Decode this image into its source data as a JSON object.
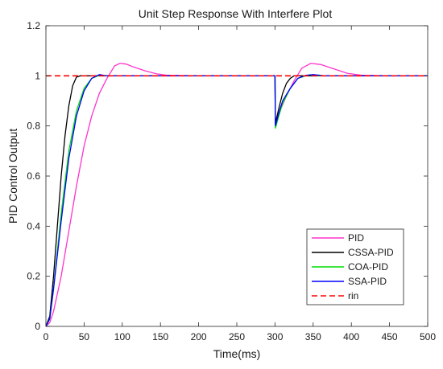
{
  "chart_data": {
    "type": "line",
    "title": "Unit Step Response With Interfere Plot",
    "xlabel": "Time(ms)",
    "ylabel": "PID Control Output",
    "xlim": [
      0,
      500
    ],
    "ylim": [
      0,
      1.2
    ],
    "xticks": [
      0,
      50,
      100,
      150,
      200,
      250,
      300,
      350,
      400,
      450,
      500
    ],
    "yticks": [
      0,
      0.2,
      0.4,
      0.6,
      0.8,
      1,
      1.2
    ],
    "grid": false,
    "legend_position": "bottom-right",
    "series": [
      {
        "name": "PID",
        "color": "#ff33cc",
        "style": "solid",
        "points": [
          [
            0,
            0
          ],
          [
            5,
            0.015
          ],
          [
            10,
            0.06
          ],
          [
            20,
            0.2
          ],
          [
            30,
            0.38
          ],
          [
            40,
            0.56
          ],
          [
            50,
            0.72
          ],
          [
            60,
            0.84
          ],
          [
            70,
            0.93
          ],
          [
            80,
            0.99
          ],
          [
            90,
            1.04
          ],
          [
            97,
            1.05
          ],
          [
            105,
            1.047
          ],
          [
            115,
            1.035
          ],
          [
            130,
            1.02
          ],
          [
            145,
            1.008
          ],
          [
            160,
            1.002
          ],
          [
            200,
            1.0
          ],
          [
            300,
            1.0
          ],
          [
            300.5,
            0.82
          ],
          [
            305,
            0.85
          ],
          [
            315,
            0.92
          ],
          [
            325,
            0.98
          ],
          [
            335,
            1.03
          ],
          [
            347,
            1.05
          ],
          [
            360,
            1.045
          ],
          [
            375,
            1.03
          ],
          [
            395,
            1.01
          ],
          [
            415,
            1.002
          ],
          [
            450,
            1.0
          ],
          [
            500,
            1.0
          ]
        ]
      },
      {
        "name": "CSSA-PID",
        "color": "#000000",
        "style": "solid",
        "points": [
          [
            0,
            0
          ],
          [
            5,
            0.04
          ],
          [
            10,
            0.2
          ],
          [
            15,
            0.4
          ],
          [
            20,
            0.6
          ],
          [
            25,
            0.76
          ],
          [
            30,
            0.88
          ],
          [
            35,
            0.96
          ],
          [
            40,
            0.995
          ],
          [
            45,
            1.0
          ],
          [
            300,
            1.0
          ],
          [
            300.5,
            0.81
          ],
          [
            305,
            0.87
          ],
          [
            310,
            0.93
          ],
          [
            315,
            0.97
          ],
          [
            320,
            0.99
          ],
          [
            325,
            1.0
          ],
          [
            500,
            1.0
          ]
        ]
      },
      {
        "name": "COA-PID",
        "color": "#00dd00",
        "style": "solid",
        "points": [
          [
            0,
            0
          ],
          [
            5,
            0.03
          ],
          [
            10,
            0.15
          ],
          [
            20,
            0.45
          ],
          [
            30,
            0.7
          ],
          [
            40,
            0.86
          ],
          [
            50,
            0.95
          ],
          [
            60,
            0.99
          ],
          [
            70,
            1.002
          ],
          [
            80,
            1.0
          ],
          [
            300,
            1.0
          ],
          [
            300.5,
            0.79
          ],
          [
            305,
            0.84
          ],
          [
            310,
            0.89
          ],
          [
            320,
            0.95
          ],
          [
            330,
            0.99
          ],
          [
            340,
            1.0
          ],
          [
            345,
            1.003
          ],
          [
            360,
            1.0
          ],
          [
            500,
            1.0
          ]
        ]
      },
      {
        "name": "SSA-PID",
        "color": "#0000ff",
        "style": "solid",
        "points": [
          [
            0,
            0
          ],
          [
            5,
            0.03
          ],
          [
            10,
            0.15
          ],
          [
            20,
            0.42
          ],
          [
            30,
            0.67
          ],
          [
            40,
            0.84
          ],
          [
            50,
            0.94
          ],
          [
            60,
            0.99
          ],
          [
            70,
            1.005
          ],
          [
            80,
            1.0
          ],
          [
            300,
            1.0
          ],
          [
            300.5,
            0.8
          ],
          [
            305,
            0.85
          ],
          [
            310,
            0.9
          ],
          [
            320,
            0.95
          ],
          [
            330,
            0.99
          ],
          [
            340,
            1.002
          ],
          [
            350,
            1.005
          ],
          [
            365,
            1.0
          ],
          [
            500,
            1.0
          ]
        ]
      },
      {
        "name": "rin",
        "color": "#ff0000",
        "style": "dashed",
        "points": [
          [
            0,
            1
          ],
          [
            500,
            1
          ]
        ]
      }
    ]
  }
}
